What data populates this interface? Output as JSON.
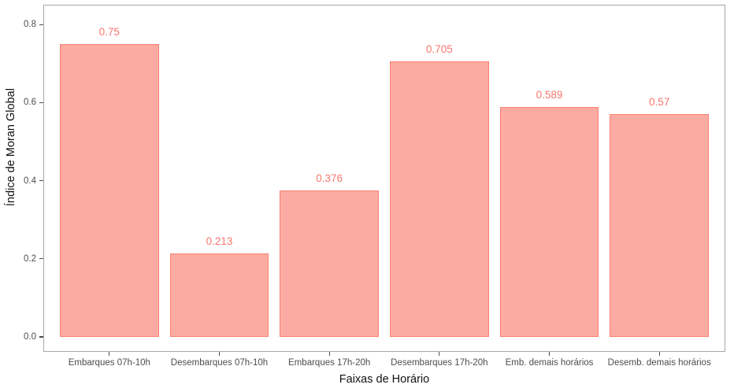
{
  "chart_data": {
    "type": "bar",
    "categories": [
      "Embarques 07h-10h",
      "Desembarques 07h-10h",
      "Embarques 17h-20h",
      "Desembarques 17h-20h",
      "Emb. demais horários",
      "Desemb. demais horários"
    ],
    "values": [
      0.75,
      0.213,
      0.376,
      0.705,
      0.589,
      0.57
    ],
    "bar_labels": [
      "0.75",
      "0.213",
      "0.376",
      "0.705",
      "0.589",
      "0.57"
    ],
    "title": "",
    "xlabel": "Faixas de Horário",
    "ylabel": "Índice de Moran Global",
    "ylim": [
      0,
      0.8
    ],
    "yticks": [
      0,
      0.2,
      0.4,
      0.6,
      0.8
    ],
    "ytick_labels": [
      "0.0",
      "0.2",
      "0.4",
      "0.6",
      "0.8"
    ],
    "grid": false,
    "legend": "none",
    "colors": {
      "bar_fill": "rgba(250,128,114,0.66)",
      "bar_stroke": "#fa8072",
      "value_label": "#f8766d",
      "axis_text": "#4d4d4d",
      "axis_title": "#111111",
      "panel_border": "#a8a8a8",
      "tick_mark": "#4d4d4d",
      "background": "#ffffff"
    }
  }
}
